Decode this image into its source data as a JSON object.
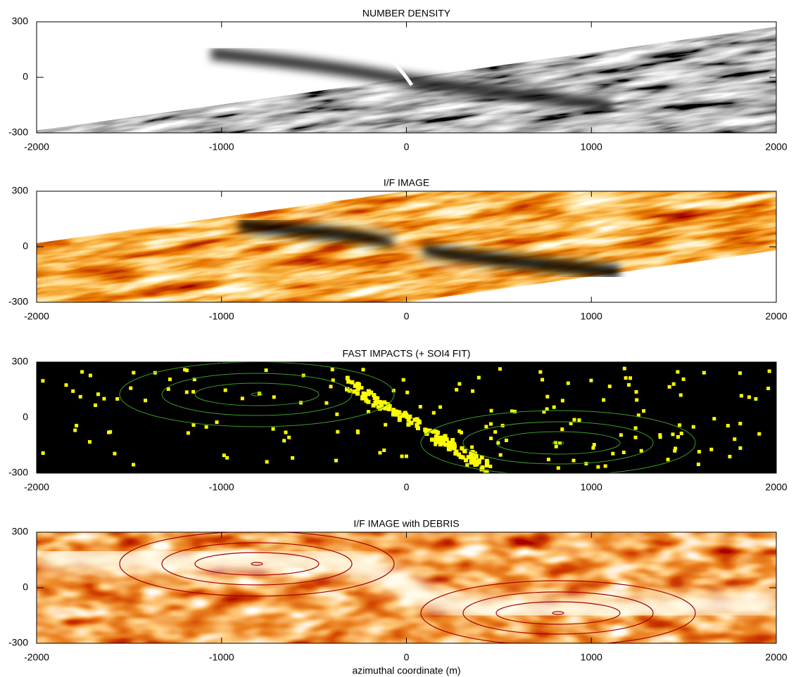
{
  "chart_data": [
    {
      "type": "image",
      "title": "NUMBER DENSITY",
      "xlim": [
        -2000,
        2000
      ],
      "xticks": [
        -2000,
        -1000,
        0,
        1000,
        2000
      ],
      "ylim": [
        -300,
        300
      ],
      "yticks": [
        -300,
        0,
        300
      ]
    },
    {
      "type": "image",
      "title": "I/F IMAGE",
      "xlim": [
        -2000,
        2000
      ],
      "xticks": [
        -2000,
        -1000,
        0,
        1000,
        2000
      ],
      "ylim": [
        -300,
        300
      ],
      "yticks": [
        -300,
        0,
        300
      ]
    },
    {
      "type": "image",
      "title": "FAST IMPACTS (+ SOI4 FIT)",
      "xlim": [
        -2000,
        2000
      ],
      "xticks": [
        -2000,
        -1000,
        0,
        1000,
        2000
      ],
      "ylim": [
        -300,
        300
      ],
      "yticks": [
        -300,
        0,
        300
      ]
    },
    {
      "type": "image",
      "title": "I/F IMAGE with DEBRIS",
      "xlim": [
        -2000,
        2000
      ],
      "xticks": [
        -2000,
        -1000,
        0,
        1000,
        2000
      ],
      "ylim": [
        -300,
        300
      ],
      "yticks": [
        -300,
        0,
        300
      ],
      "xlabel": "azimuthal coordinate (m)"
    }
  ]
}
